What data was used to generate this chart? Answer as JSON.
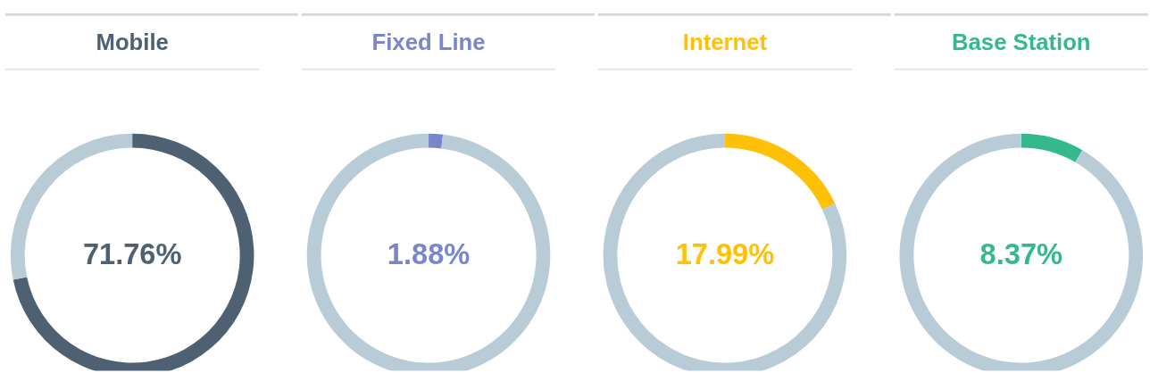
{
  "chart_data": [
    {
      "type": "donut",
      "title": "Mobile",
      "categories": [
        null,
        null
      ],
      "values": [
        71.76,
        28.24
      ],
      "colors": [
        "#4d6172",
        "#b7ccd7"
      ],
      "annotations": [
        "71.76%"
      ]
    },
    {
      "type": "donut",
      "title": "Fixed Line",
      "categories": [
        null,
        null
      ],
      "values": [
        1.88,
        98.12
      ],
      "colors": [
        "#7986cb",
        "#b7ccd7"
      ],
      "annotations": [
        "1.88%"
      ]
    },
    {
      "type": "donut",
      "title": "Internet",
      "categories": [
        null,
        null
      ],
      "values": [
        17.99,
        82.01
      ],
      "colors": [
        "#ffc107",
        "#b7ccd7"
      ],
      "annotations": [
        "17.99%"
      ]
    },
    {
      "type": "donut",
      "title": "Base Station",
      "categories": [
        null,
        null
      ],
      "values": [
        8.37,
        91.63
      ],
      "colors": [
        "#33b98c",
        "#b7ccd7"
      ],
      "annotations": [
        "8.37%"
      ]
    }
  ]
}
